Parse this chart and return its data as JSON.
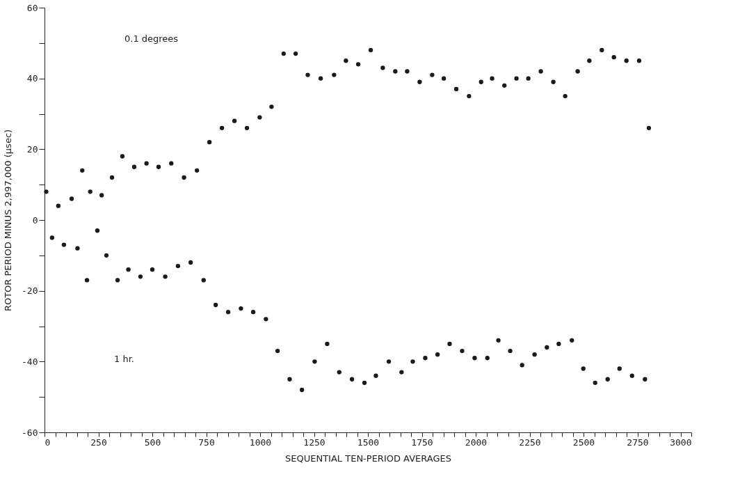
{
  "chart_data": {
    "type": "scatter",
    "xlabel": "SEQUENTIAL  TEN-PERIOD AVERAGES",
    "ylabel": "ROTOR PERIOD MINUS 2,997,000 (μsec)",
    "annotations": [
      "0.1 degrees",
      "1 hr."
    ],
    "marker": "circle",
    "grid": false,
    "xlim": [
      0,
      3000
    ],
    "ylim": [
      -60,
      60
    ],
    "xticks": [
      0,
      {
        "value": 50,
        "label": null
      },
      {
        "value": 100,
        "label": null
      },
      {
        "value": 150,
        "label": null
      },
      {
        "value": 200,
        "label": null
      },
      250,
      {
        "value": 300,
        "label": null
      },
      {
        "value": 350,
        "label": null
      },
      {
        "value": 400,
        "label": null
      },
      {
        "value": 450,
        "label": null
      },
      500,
      {
        "value": 550,
        "label": null
      },
      {
        "value": 600,
        "label": null
      },
      {
        "value": 650,
        "label": null
      },
      {
        "value": 700,
        "label": null
      },
      750,
      {
        "value": 800,
        "label": null
      },
      {
        "value": 850,
        "label": null
      },
      {
        "value": 900,
        "label": null
      },
      {
        "value": 950,
        "label": null
      },
      1000,
      {
        "value": 1050,
        "label": null
      },
      {
        "value": 1100,
        "label": null
      },
      {
        "value": 1150,
        "label": null
      },
      {
        "value": 1200,
        "label": null
      },
      1250,
      {
        "value": 1300,
        "label": null
      },
      {
        "value": 1350,
        "label": null
      },
      {
        "value": 1400,
        "label": null
      },
      {
        "value": 1450,
        "label": null
      },
      1500,
      {
        "value": 1550,
        "label": null
      },
      {
        "value": 1600,
        "label": null
      },
      {
        "value": 1650,
        "label": null
      },
      {
        "value": 1700,
        "label": null
      },
      1750,
      {
        "value": 1800,
        "label": null
      },
      {
        "value": 1850,
        "label": null
      },
      {
        "value": 1900,
        "label": null
      },
      {
        "value": 1950,
        "label": null
      },
      2000,
      {
        "value": 2050,
        "label": null
      },
      {
        "value": 2100,
        "label": null
      },
      {
        "value": 2150,
        "label": null
      },
      {
        "value": 2200,
        "label": null
      },
      2250,
      {
        "value": 2300,
        "label": null
      },
      {
        "value": 2350,
        "label": null
      },
      {
        "value": 2400,
        "label": null
      },
      {
        "value": 2450,
        "label": null
      },
      2500,
      {
        "value": 2550,
        "label": null
      },
      {
        "value": 2600,
        "label": null
      },
      {
        "value": 2650,
        "label": null
      },
      {
        "value": 2700,
        "label": null
      },
      2750,
      {
        "value": 2800,
        "label": null
      },
      {
        "value": 2850,
        "label": null
      },
      {
        "value": 2900,
        "label": null
      },
      {
        "value": 2950,
        "label": null
      },
      3000
    ],
    "yticks": [
      -60,
      {
        "value": -50,
        "label": null
      },
      -40,
      {
        "value": -30,
        "label": null
      },
      -20,
      {
        "value": -10,
        "label": null
      },
      0,
      {
        "value": 10,
        "label": null
      },
      20,
      {
        "value": 30,
        "label": null
      },
      40,
      {
        "value": 50,
        "label": null
      },
      60
    ],
    "series": [
      {
        "color": "#1a1a1a",
        "x": [
          8,
          35,
          64,
          90,
          126,
          153,
          175,
          197,
          212,
          245,
          265,
          287,
          313,
          339,
          361,
          389,
          416,
          445,
          473,
          500,
          529,
          560,
          588,
          619,
          647,
          678,
          707,
          738,
          765,
          794,
          823,
          852,
          881,
          911,
          939,
          968,
          998,
          1027,
          1053,
          1081,
          1109,
          1137,
          1165,
          1194,
          1221,
          1253,
          1281,
          1311,
          1343,
          1367,
          1398,
          1426,
          1455,
          1484,
          1513,
          1537,
          1569,
          1597,
          1627,
          1656,
          1682,
          1708,
          1740,
          1766,
          1798,
          1823,
          1852,
          1879,
          1910,
          1937,
          1969,
          1995,
          2025,
          2054,
          2076,
          2105,
          2133,
          2160,
          2189,
          2215,
          2244,
          2273,
          2302,
          2330,
          2360,
          2385,
          2415,
          2446,
          2473,
          2499,
          2527,
          2554,
          2585,
          2612,
          2641,
          2667,
          2699,
          2725,
          2758,
          2785,
          2803
        ],
        "values": [
          8,
          -5,
          4,
          -7,
          6,
          -8,
          14,
          -17,
          8,
          -3,
          7,
          -10,
          12,
          -17,
          18,
          -14,
          15,
          -16,
          16,
          -14,
          15,
          -16,
          16,
          -13,
          12,
          -12,
          14,
          -17,
          22,
          -24,
          26,
          -26,
          28,
          -25,
          26,
          -26,
          29,
          -28,
          32,
          -37,
          47,
          -45,
          47,
          -48,
          41,
          -40,
          40,
          -35,
          41,
          -43,
          45,
          -45,
          44,
          -46,
          48,
          -44,
          43,
          -40,
          42,
          -43,
          42,
          -40,
          39,
          -39,
          41,
          -38,
          40,
          -35,
          37,
          -37,
          35,
          -39,
          39,
          -39,
          40,
          -34,
          38,
          -37,
          40,
          -41,
          40,
          -38,
          42,
          -36,
          39,
          -35,
          35,
          -34,
          42,
          -42,
          45,
          -46,
          48,
          -45,
          46,
          -42,
          45,
          -44,
          45,
          -45,
          26
        ]
      }
    ]
  }
}
